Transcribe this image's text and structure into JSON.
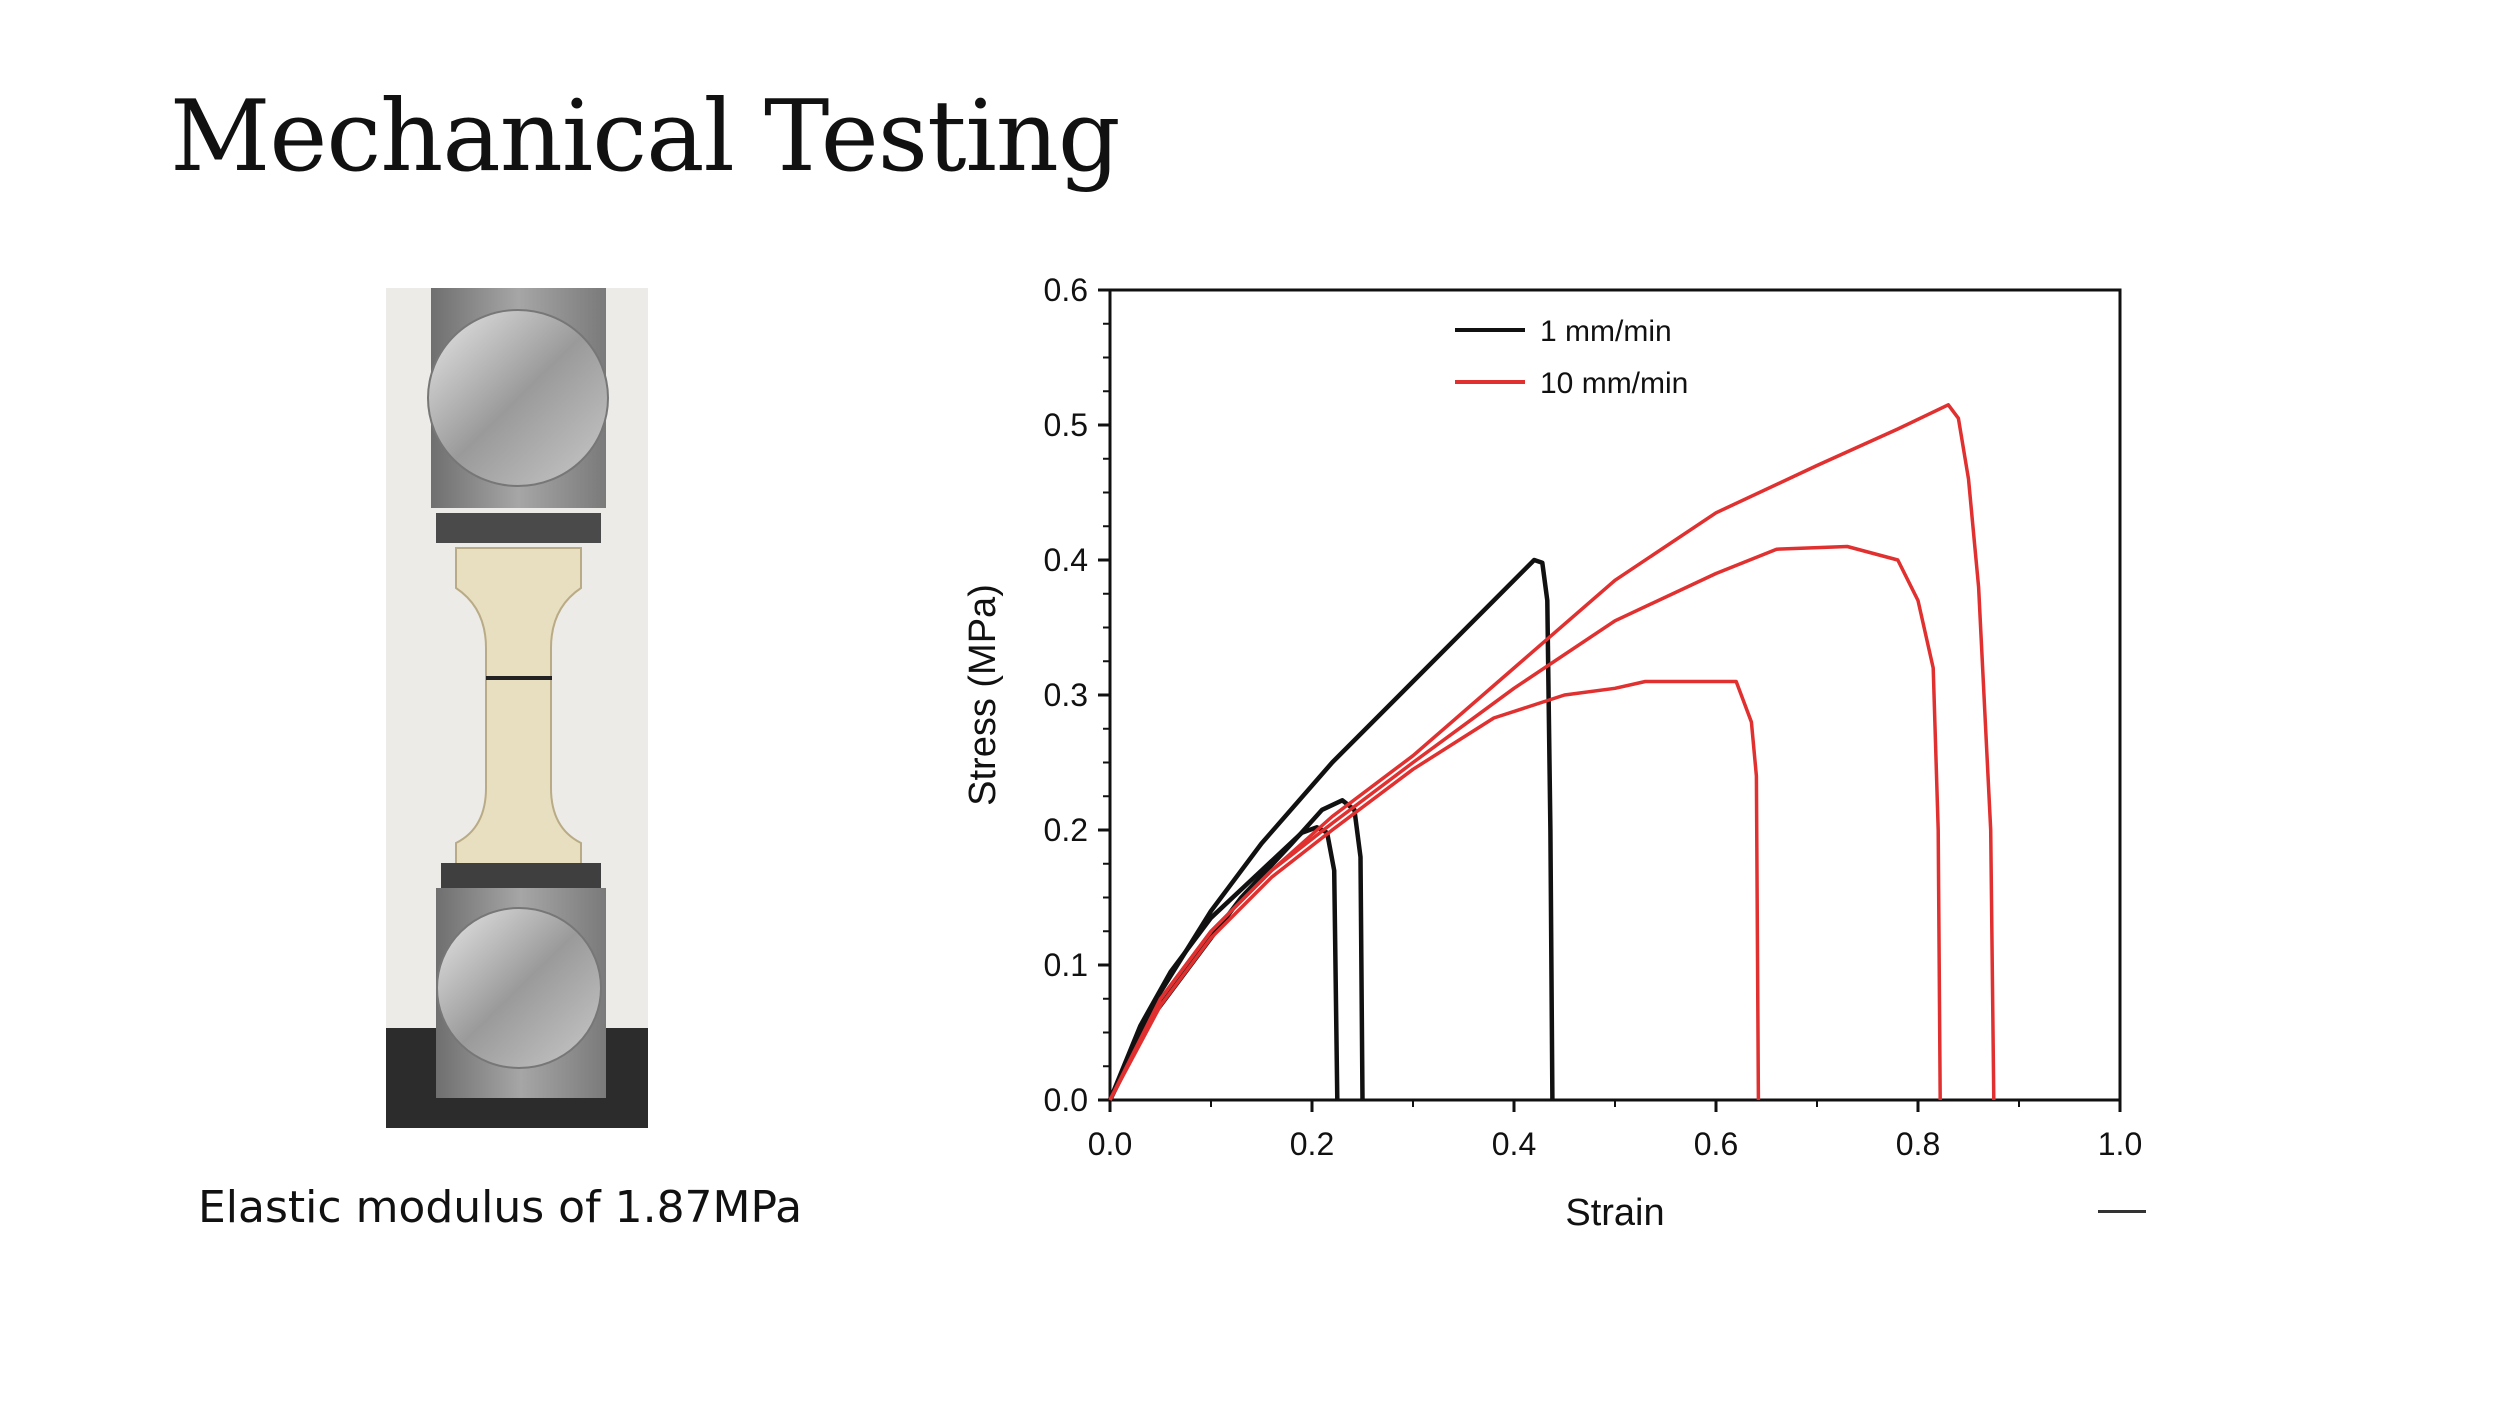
{
  "slide": {
    "title": "Mechanical Testing",
    "caption": "Elastic modulus of 1.87MPa"
  },
  "photo": {
    "description_icon": "tensile-specimen-photo"
  },
  "chart_data": {
    "type": "line",
    "xlabel": "Strain",
    "ylabel": "Stress (MPa)",
    "xlim": [
      0,
      1.0
    ],
    "ylim": [
      0,
      0.6
    ],
    "xticks": [
      "0.0",
      "0.2",
      "0.4",
      "0.6",
      "0.8",
      "1.0"
    ],
    "yticks": [
      "0.0",
      "0.1",
      "0.2",
      "0.3",
      "0.4",
      "0.5",
      "0.6"
    ],
    "legend_position": "top-center",
    "grid": false,
    "series": [
      {
        "name": "1 mm/min",
        "color": "#111111",
        "curves": [
          [
            [
              0,
              0
            ],
            [
              0.03,
              0.055
            ],
            [
              0.06,
              0.095
            ],
            [
              0.1,
              0.135
            ],
            [
              0.15,
              0.17
            ],
            [
              0.19,
              0.198
            ],
            [
              0.205,
              0.202
            ],
            [
              0.215,
              0.198
            ],
            [
              0.222,
              0.17
            ],
            [
              0.225,
              0.0
            ]
          ],
          [
            [
              0,
              0
            ],
            [
              0.04,
              0.06
            ],
            [
              0.08,
              0.1
            ],
            [
              0.13,
              0.15
            ],
            [
              0.18,
              0.19
            ],
            [
              0.21,
              0.215
            ],
            [
              0.23,
              0.222
            ],
            [
              0.242,
              0.215
            ],
            [
              0.248,
              0.18
            ],
            [
              0.25,
              0.0
            ]
          ],
          [
            [
              0,
              0
            ],
            [
              0.05,
              0.08
            ],
            [
              0.1,
              0.14
            ],
            [
              0.15,
              0.19
            ],
            [
              0.22,
              0.25
            ],
            [
              0.3,
              0.31
            ],
            [
              0.38,
              0.37
            ],
            [
              0.42,
              0.4
            ],
            [
              0.428,
              0.398
            ],
            [
              0.433,
              0.37
            ],
            [
              0.436,
              0.2
            ],
            [
              0.438,
              0.0
            ]
          ]
        ]
      },
      {
        "name": "10 mm/min",
        "color": "#e0302f",
        "curves": [
          [
            [
              0,
              0
            ],
            [
              0.05,
              0.07
            ],
            [
              0.1,
              0.12
            ],
            [
              0.16,
              0.165
            ],
            [
              0.22,
              0.2
            ],
            [
              0.3,
              0.245
            ],
            [
              0.38,
              0.283
            ],
            [
              0.45,
              0.3
            ],
            [
              0.5,
              0.305
            ],
            [
              0.53,
              0.31
            ],
            [
              0.62,
              0.31
            ],
            [
              0.635,
              0.28
            ],
            [
              0.64,
              0.24
            ],
            [
              0.642,
              0.0
            ]
          ],
          [
            [
              0,
              0
            ],
            [
              0.05,
              0.075
            ],
            [
              0.1,
              0.125
            ],
            [
              0.16,
              0.17
            ],
            [
              0.22,
              0.205
            ],
            [
              0.3,
              0.25
            ],
            [
              0.4,
              0.305
            ],
            [
              0.5,
              0.355
            ],
            [
              0.6,
              0.39
            ],
            [
              0.66,
              0.408
            ],
            [
              0.73,
              0.41
            ],
            [
              0.78,
              0.4
            ],
            [
              0.8,
              0.37
            ],
            [
              0.815,
              0.32
            ],
            [
              0.82,
              0.2
            ],
            [
              0.822,
              0.0
            ]
          ]
        ]
      },
      {
        "name": "10 mm/min",
        "color": "#e0302f",
        "legend": false,
        "curves": [
          [
            [
              0,
              0
            ],
            [
              0.05,
              0.075
            ],
            [
              0.1,
              0.125
            ],
            [
              0.16,
              0.17
            ],
            [
              0.22,
              0.21
            ],
            [
              0.3,
              0.255
            ],
            [
              0.4,
              0.32
            ],
            [
              0.5,
              0.385
            ],
            [
              0.6,
              0.435
            ],
            [
              0.7,
              0.47
            ],
            [
              0.78,
              0.497
            ],
            [
              0.83,
              0.515
            ],
            [
              0.84,
              0.505
            ],
            [
              0.85,
              0.46
            ],
            [
              0.86,
              0.38
            ],
            [
              0.872,
              0.2
            ],
            [
              0.875,
              0.0
            ]
          ]
        ]
      }
    ]
  }
}
